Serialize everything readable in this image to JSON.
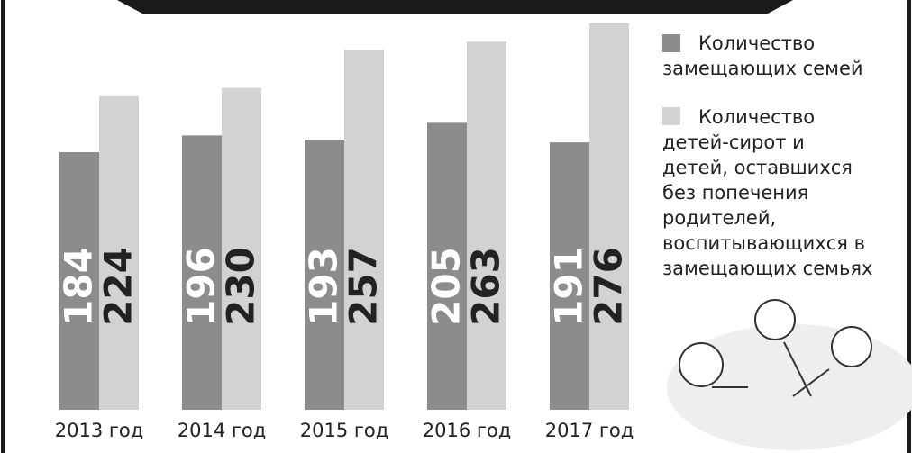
{
  "chart_data": {
    "type": "bar",
    "categories": [
      "2013 год",
      "2014 год",
      "2015 год",
      "2016 год",
      "2017 год"
    ],
    "series": [
      {
        "name": "Количество замещающих семей",
        "color": "#8c8c8c",
        "values": [
          184,
          196,
          193,
          205,
          191
        ]
      },
      {
        "name": "Количество детей-сирот и детей, оставшихся без попечения родителей, воспитывающихся в замещающих семьях",
        "color": "#d2d2d2",
        "values": [
          224,
          230,
          257,
          263,
          276
        ]
      }
    ]
  }
}
